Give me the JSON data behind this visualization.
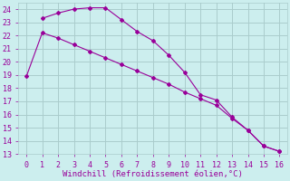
{
  "xlabel": "Windchill (Refroidissement éolien,°C)",
  "line1_x": [
    0,
    1,
    2,
    3,
    4,
    5,
    6,
    7,
    8,
    9,
    10,
    11,
    12,
    13,
    14,
    15,
    16
  ],
  "line1_y": [
    18.9,
    22.2,
    21.8,
    21.3,
    20.8,
    20.3,
    19.8,
    19.3,
    18.8,
    18.3,
    17.7,
    17.2,
    16.7,
    15.7,
    14.8,
    13.6,
    13.2
  ],
  "line2_x": [
    1,
    2,
    3,
    4,
    5,
    6,
    7,
    8,
    9,
    10,
    11,
    12,
    13,
    14,
    15,
    16
  ],
  "line2_y": [
    23.3,
    23.7,
    24.0,
    24.1,
    24.1,
    23.2,
    22.3,
    21.6,
    20.5,
    19.2,
    17.5,
    17.1,
    15.8,
    14.8,
    13.6,
    13.2
  ],
  "color": "#990099",
  "bg_color": "#cceeee",
  "grid_color": "#aacccc",
  "xlim": [
    -0.5,
    16.5
  ],
  "ylim": [
    13,
    24.5
  ],
  "yticks": [
    13,
    14,
    15,
    16,
    17,
    18,
    19,
    20,
    21,
    22,
    23,
    24
  ],
  "xticks": [
    0,
    1,
    2,
    3,
    4,
    5,
    6,
    7,
    8,
    9,
    10,
    11,
    12,
    13,
    14,
    15,
    16
  ],
  "xlabel_color": "#990099",
  "xlabel_fontsize": 6.5,
  "tick_fontsize": 6,
  "line_width": 0.8,
  "marker": "D",
  "marker_size": 2.0
}
